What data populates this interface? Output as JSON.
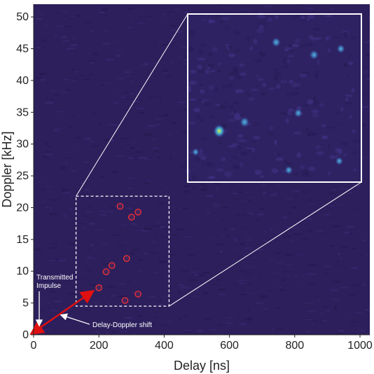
{
  "chart_data": {
    "type": "heatmap",
    "title": "",
    "xlabel": "Delay [ns]",
    "ylabel": "Doppler [kHz]",
    "xlim": [
      0,
      1030
    ],
    "ylim": [
      0,
      52
    ],
    "xticks": [
      0,
      200,
      400,
      600,
      800,
      1000
    ],
    "yticks": [
      0,
      5,
      10,
      15,
      20,
      25,
      30,
      35,
      40,
      45,
      50
    ],
    "colormap": "viridis-dark",
    "background_color": "#2c1f5c",
    "grid": false,
    "targets": [
      {
        "x": 265,
        "y": 20.2
      },
      {
        "x": 320,
        "y": 19.3
      },
      {
        "x": 300,
        "y": 18.5
      },
      {
        "x": 285,
        "y": 12.0
      },
      {
        "x": 240,
        "y": 10.9
      },
      {
        "x": 222,
        "y": 9.9
      },
      {
        "x": 200,
        "y": 7.4
      },
      {
        "x": 320,
        "y": 6.4
      },
      {
        "x": 280,
        "y": 5.4
      }
    ],
    "transmitted_impulse": {
      "x": 10,
      "y": 0.7
    },
    "zoom_box": {
      "x": [
        130,
        415
      ],
      "y": [
        4.5,
        21.8
      ]
    },
    "inset_blobs": [
      {
        "x": 580,
        "y": 32.5,
        "intensity": 1.0
      },
      {
        "x": 660,
        "y": 34.0,
        "intensity": 0.7
      },
      {
        "x": 760,
        "y": 47.3,
        "intensity": 0.6
      },
      {
        "x": 880,
        "y": 45.2,
        "intensity": 0.6
      },
      {
        "x": 965,
        "y": 46.2,
        "intensity": 0.5
      },
      {
        "x": 830,
        "y": 35.5,
        "intensity": 0.5
      },
      {
        "x": 800,
        "y": 26.0,
        "intensity": 0.45
      },
      {
        "x": 960,
        "y": 27.5,
        "intensity": 0.4
      },
      {
        "x": 505,
        "y": 29.0,
        "intensity": 0.35
      }
    ],
    "annotations": [
      {
        "text_lines": [
          "Transmitted",
          "Impulse"
        ],
        "color": "#ffffff"
      },
      {
        "text_lines": [
          "Delay-Doppler shift"
        ],
        "color": "#ffffff"
      }
    ],
    "colors": {
      "target_marker": "#ff3030",
      "arrow_shift": "#e01010",
      "arrow_annotation": "#ffffff",
      "box": "#ffffff"
    }
  }
}
